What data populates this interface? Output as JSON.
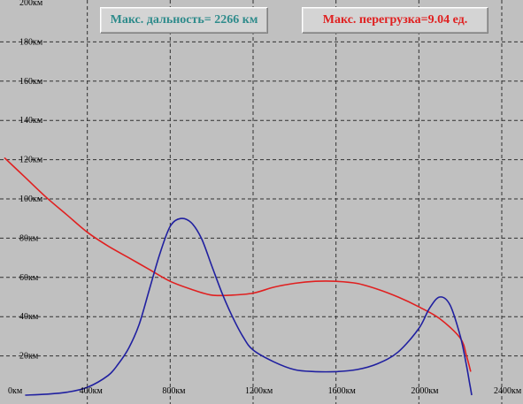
{
  "info": {
    "range_text": "Макс. дальность= 2266 км",
    "range_color": "#2e8b8b",
    "load_text": "Макс. перегрузка=9.04 ед.",
    "load_color": "#e02020"
  },
  "chart_data": {
    "type": "line",
    "xlim": [
      0,
      2400
    ],
    "ylim": [
      0,
      200
    ],
    "grid": true,
    "x_ticks": [
      {
        "value": 0,
        "label": "0км"
      },
      {
        "value": 400,
        "label": "400км"
      },
      {
        "value": 800,
        "label": "800км"
      },
      {
        "value": 1200,
        "label": "1200км"
      },
      {
        "value": 1600,
        "label": "1600км"
      },
      {
        "value": 2000,
        "label": "2000км"
      },
      {
        "value": 2400,
        "label": "2400км"
      }
    ],
    "y_ticks": [
      {
        "value": 200,
        "label": "200км"
      },
      {
        "value": 180,
        "label": "180км"
      },
      {
        "value": 160,
        "label": "160км"
      },
      {
        "value": 140,
        "label": "140км"
      },
      {
        "value": 120,
        "label": "120км"
      },
      {
        "value": 100,
        "label": "100км"
      },
      {
        "value": 80,
        "label": "80км"
      },
      {
        "value": 60,
        "label": "60км"
      },
      {
        "value": 40,
        "label": "40км"
      },
      {
        "value": 20,
        "label": "20км"
      }
    ],
    "series": [
      {
        "color": "#e02020",
        "x": [
          0,
          100,
          200,
          300,
          400,
          500,
          600,
          700,
          800,
          900,
          1000,
          1100,
          1200,
          1300,
          1400,
          1500,
          1600,
          1700,
          1800,
          1900,
          2000,
          2100,
          2200,
          2230,
          2250
        ],
        "y": [
          121,
          111,
          101,
          92,
          83,
          76,
          70,
          64,
          58,
          54,
          51,
          51,
          52,
          55,
          57,
          58,
          58,
          57,
          54,
          50,
          45,
          39,
          29,
          20,
          12
        ]
      },
      {
        "color": "#2020a0",
        "x": [
          100,
          200,
          300,
          400,
          500,
          550,
          600,
          650,
          700,
          750,
          800,
          850,
          900,
          950,
          1000,
          1050,
          1100,
          1150,
          1200,
          1300,
          1400,
          1500,
          1600,
          1700,
          1800,
          1900,
          2000,
          2050,
          2100,
          2150,
          2200,
          2230,
          2245,
          2255
        ],
        "y": [
          0,
          0.5,
          1.5,
          4,
          10,
          16,
          24,
          36,
          54,
          72,
          86,
          90,
          88,
          80,
          66,
          52,
          40,
          30,
          23,
          17,
          13,
          12,
          12,
          13,
          16,
          22,
          34,
          44,
          50,
          46,
          30,
          15,
          6,
          0
        ]
      }
    ]
  }
}
